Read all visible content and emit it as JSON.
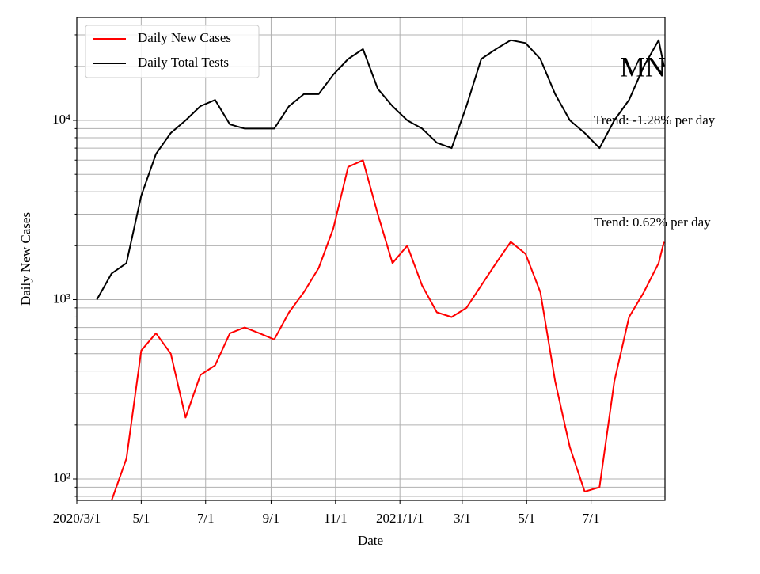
{
  "chart_data": {
    "type": "line",
    "title": "MN",
    "xlabel": "Date",
    "ylabel": "Daily New Cases",
    "annotations": [
      "Trend: -1.28% per day",
      "Trend: 0.62% per day"
    ],
    "log_y": true,
    "grid": true,
    "legend": "upper left",
    "x": [
      "2020-03-20",
      "2020-04-03",
      "2020-04-17",
      "2020-05-01",
      "2020-05-15",
      "2020-05-29",
      "2020-06-12",
      "2020-06-26",
      "2020-07-10",
      "2020-07-24",
      "2020-08-07",
      "2020-08-21",
      "2020-09-04",
      "2020-09-18",
      "2020-10-02",
      "2020-10-16",
      "2020-10-30",
      "2020-11-13",
      "2020-11-27",
      "2020-12-11",
      "2020-12-25",
      "2021-01-08",
      "2021-01-22",
      "2021-02-05",
      "2021-02-19",
      "2021-03-05",
      "2021-03-19",
      "2021-04-02",
      "2021-04-16",
      "2021-04-30",
      "2021-05-14",
      "2021-05-28",
      "2021-06-11",
      "2021-06-25",
      "2021-07-09",
      "2021-07-23",
      "2021-08-06",
      "2021-08-20",
      "2021-09-03",
      "2021-09-08"
    ],
    "series": [
      {
        "name": "Daily New Cases",
        "color": "#ff0000",
        "values": [
          null,
          76,
          130,
          520,
          650,
          500,
          220,
          380,
          430,
          650,
          700,
          650,
          600,
          850,
          1100,
          1500,
          2500,
          5500,
          6000,
          3000,
          1600,
          2000,
          1200,
          850,
          800,
          900,
          1200,
          1600,
          2100,
          1800,
          1100,
          350,
          150,
          85,
          90,
          350,
          800,
          1100,
          1600,
          2100
        ]
      },
      {
        "name": "Daily Total Tests",
        "color": "#000000",
        "values": [
          1000,
          1400,
          1600,
          3800,
          6500,
          8500,
          10000,
          12000,
          13000,
          9500,
          9000,
          9000,
          9000,
          12000,
          14000,
          14000,
          18000,
          22000,
          25000,
          15000,
          12000,
          10000,
          9000,
          7500,
          7000,
          12000,
          22000,
          25000,
          28000,
          27000,
          22000,
          14000,
          10000,
          8500,
          7000,
          10000,
          13000,
          20000,
          28000,
          20000
        ]
      }
    ],
    "xlim": [
      "2020-03-01",
      "2021-09-09"
    ],
    "xticks": [
      {
        "value": "2020-03-01",
        "label": "2020/3/1"
      },
      {
        "value": "2020-05-01",
        "label": "5/1"
      },
      {
        "value": "2020-07-01",
        "label": "7/1"
      },
      {
        "value": "2020-09-01",
        "label": "9/1"
      },
      {
        "value": "2020-11-01",
        "label": "11/1"
      },
      {
        "value": "2021-01-01",
        "label": "2021/1/1"
      },
      {
        "value": "2021-03-01",
        "label": "3/1"
      },
      {
        "value": "2021-05-01",
        "label": "5/1"
      },
      {
        "value": "2021-07-01",
        "label": "7/1"
      }
    ],
    "ylim": [
      76,
      37500
    ],
    "yticks": [
      {
        "value": 100,
        "label": "10²"
      },
      {
        "value": 1000,
        "label": "10³"
      },
      {
        "value": 10000,
        "label": "10⁴"
      }
    ],
    "yminorticks": [
      80,
      90,
      200,
      300,
      400,
      500,
      600,
      700,
      800,
      900,
      2000,
      3000,
      4000,
      5000,
      6000,
      7000,
      8000,
      9000,
      20000,
      30000
    ]
  }
}
